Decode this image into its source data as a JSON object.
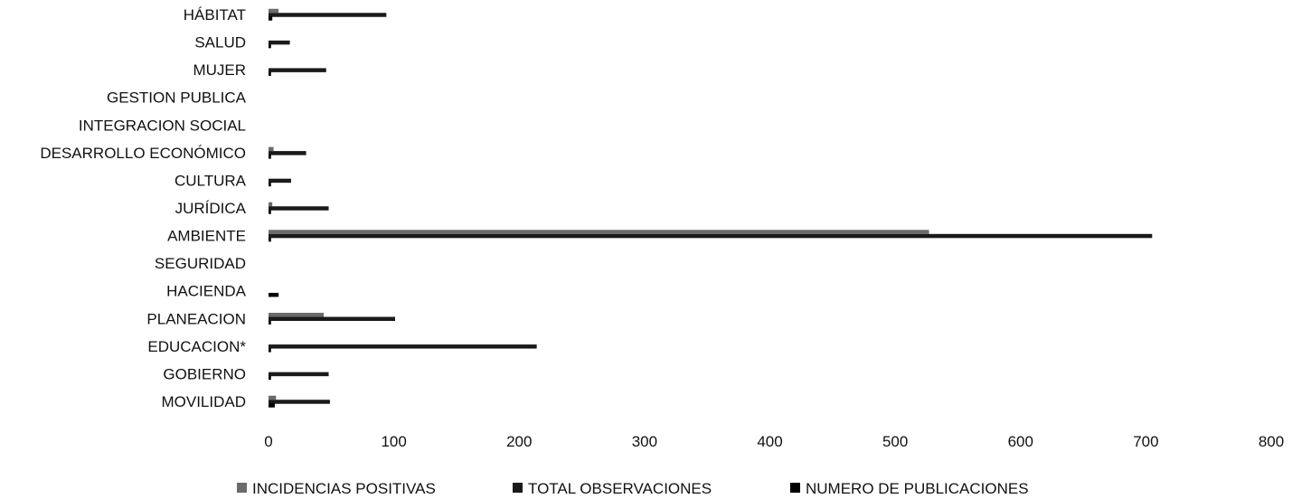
{
  "chart_data": {
    "type": "bar",
    "orientation": "horizontal",
    "categories": [
      "MOVILIDAD",
      "GOBIERNO",
      "EDUCACION*",
      "PLANEACION",
      "HACIENDA",
      "SEGURIDAD",
      "AMBIENTE",
      "JURÍDICA",
      "CULTURA",
      "DESARROLLO ECONÓMICO",
      "INTEGRACION SOCIAL",
      "GESTION PUBLICA",
      "MUJER",
      "SALUD",
      "HÁBITAT"
    ],
    "series": [
      {
        "name": "INCIDENCIAS POSITIVAS",
        "values": [
          6,
          0,
          0,
          44,
          0,
          0,
          527,
          3,
          0,
          4,
          0,
          0,
          0,
          0,
          8
        ],
        "color": "#6b6b6b"
      },
      {
        "name": "TOTAL OBSERVACIONES",
        "values": [
          49,
          48,
          214,
          101,
          0,
          0,
          705,
          48,
          18,
          30,
          0,
          0,
          46,
          17,
          94
        ],
        "color": "#1a1a1a"
      },
      {
        "name": "NUMERO DE PUBLICACIONES",
        "values": [
          5,
          2,
          2,
          2,
          8,
          0,
          2,
          2,
          2,
          2,
          0,
          0,
          2,
          2,
          3
        ],
        "color": "#000000"
      }
    ],
    "xlim": [
      0,
      800
    ],
    "xticks": [
      "0",
      "100",
      "200",
      "300",
      "400",
      "500",
      "600",
      "700",
      "800"
    ],
    "grid": false,
    "legend_position": "bottom"
  }
}
